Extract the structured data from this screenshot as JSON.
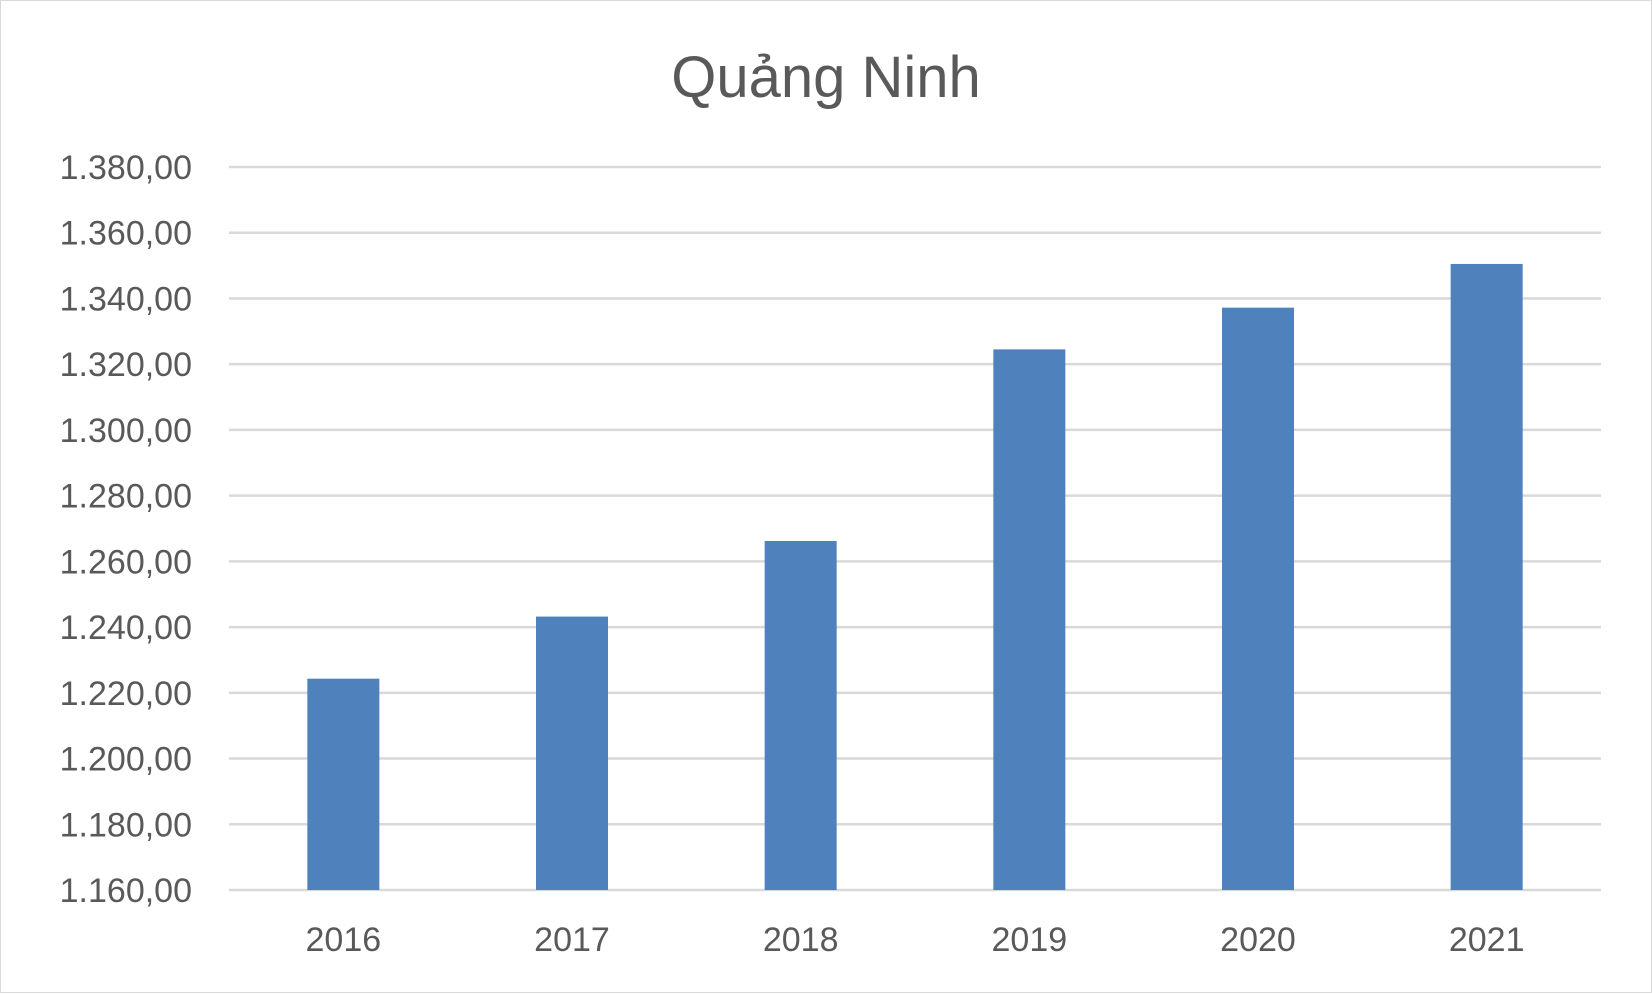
{
  "chart_data": {
    "type": "bar",
    "title": "Quảng Ninh",
    "xlabel": "",
    "ylabel": "",
    "categories": [
      "2016",
      "2017",
      "2018",
      "2019",
      "2020",
      "2021"
    ],
    "values": [
      1224.3,
      1243.2,
      1266.2,
      1324.5,
      1337.2,
      1350.5
    ],
    "ylim": [
      1160,
      1380
    ],
    "yticks": [
      1160,
      1180,
      1200,
      1220,
      1240,
      1260,
      1280,
      1300,
      1320,
      1340,
      1360,
      1380
    ],
    "ytick_labels": [
      "1.160,00",
      "1.180,00",
      "1.200,00",
      "1.220,00",
      "1.240,00",
      "1.260,00",
      "1.280,00",
      "1.300,00",
      "1.320,00",
      "1.340,00",
      "1.360,00",
      "1.380,00"
    ],
    "grid": true,
    "legend": "none",
    "bar_color": "#4f81bd",
    "grid_color": "#d9d9d9",
    "text_color": "#595959"
  }
}
